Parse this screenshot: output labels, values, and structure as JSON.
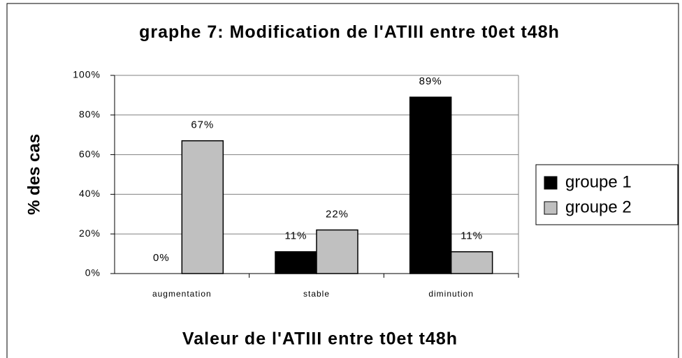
{
  "chart_data": {
    "type": "bar",
    "title": "graphe 7: Modification de l'ATIII entre t0et t48h",
    "x_label": "Valeur de l'ATIII entre t0et t48h",
    "y_label": "% des cas",
    "categories": [
      "augmentation",
      "stable",
      "diminution"
    ],
    "series": [
      {
        "name": "groupe 1",
        "color": "#000000",
        "values": [
          0,
          11,
          89
        ],
        "value_labels": [
          "0%",
          "11%",
          "89%"
        ]
      },
      {
        "name": "groupe 2",
        "color": "#c0c0c0",
        "values": [
          67,
          22,
          11
        ],
        "value_labels": [
          "67%",
          "22%",
          "11%"
        ]
      }
    ],
    "ylim": [
      0,
      100
    ],
    "yticks": [
      {
        "value": 0,
        "label": "0%"
      },
      {
        "value": 20,
        "label": "20%"
      },
      {
        "value": 40,
        "label": "40%"
      },
      {
        "value": 60,
        "label": "60%"
      },
      {
        "value": 80,
        "label": "80%"
      },
      {
        "value": 100,
        "label": "100%"
      }
    ],
    "grid": true,
    "legend": "right"
  }
}
